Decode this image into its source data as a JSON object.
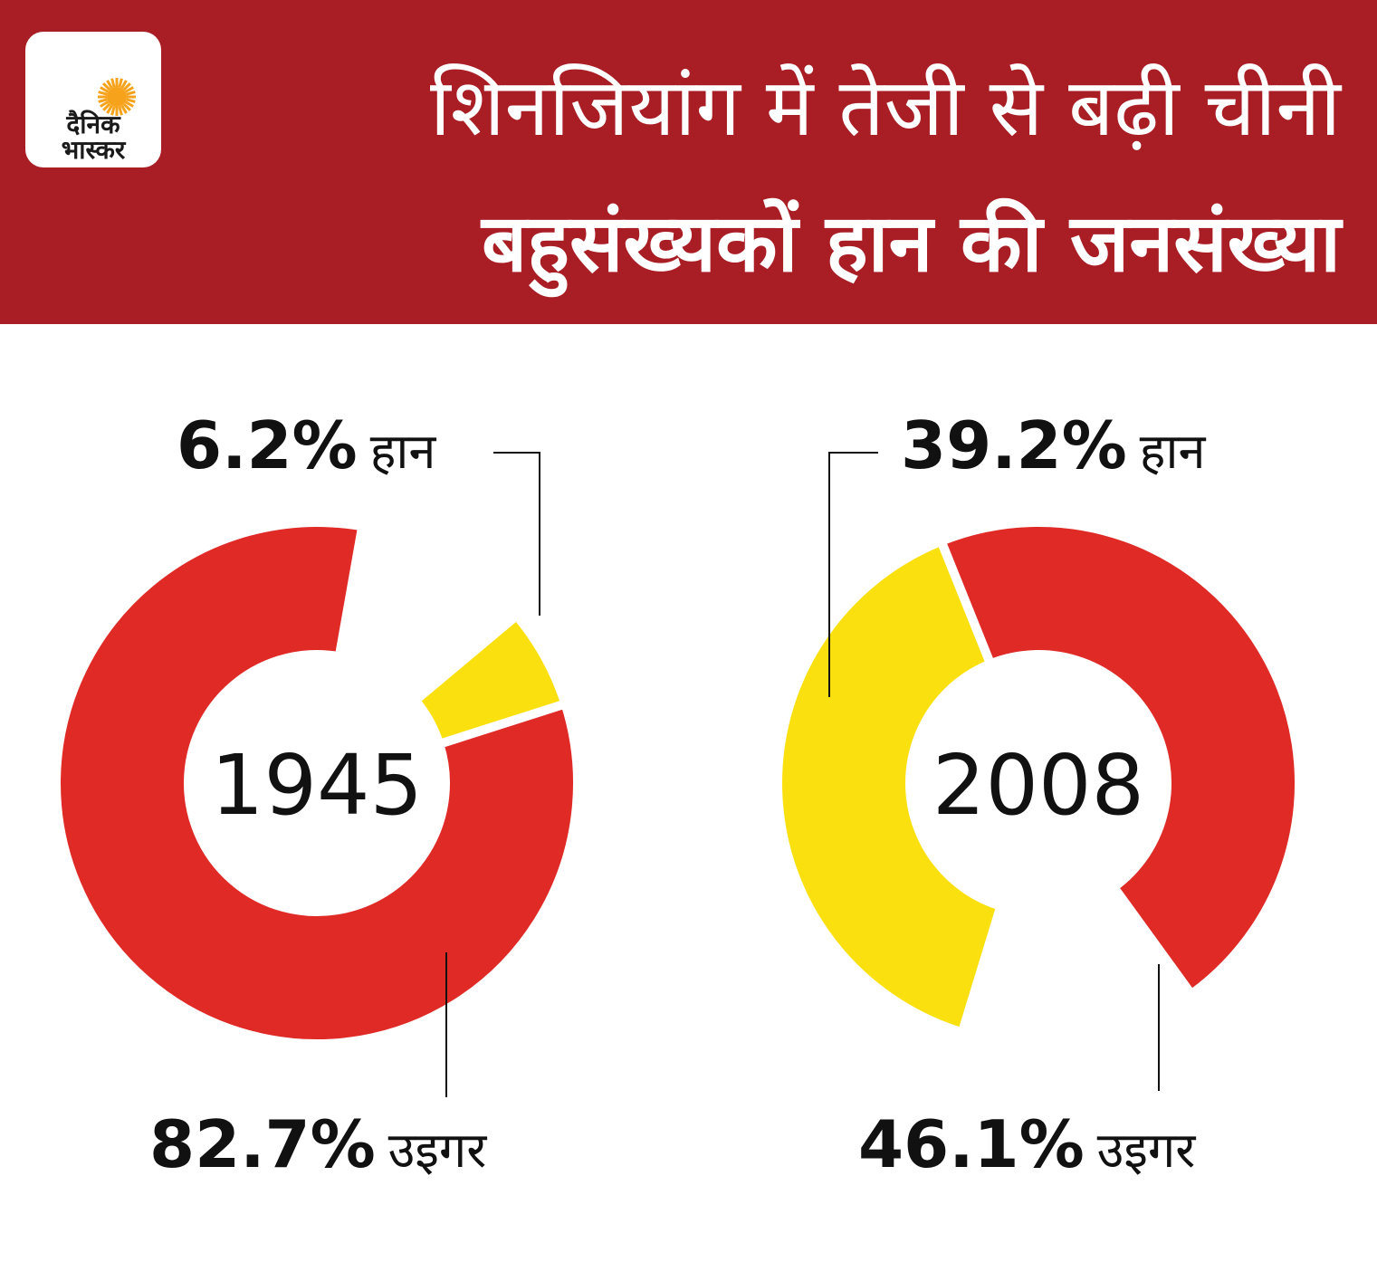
{
  "header": {
    "title_line1": "शिनजियांग में तेजी से बढ़ी चीनी",
    "title_line2": "बहुसंख्यकों हान की जनसंख्या",
    "background_color": "#a91d24"
  },
  "logo": {
    "line1": "दैनिक",
    "line2": "भास्कर",
    "sun_color": "#f7a21b"
  },
  "chart_data": [
    {
      "type": "pie",
      "center_label": "1945",
      "slices": [
        {
          "label": "हान",
          "percent": "6.2%",
          "value": 6.2,
          "color": "#fbe010"
        },
        {
          "label": "उइगर",
          "percent": "82.7%",
          "value": 82.7,
          "color": "#e02a26"
        }
      ]
    },
    {
      "type": "pie",
      "center_label": "2008",
      "slices": [
        {
          "label": "हान",
          "percent": "39.2%",
          "value": 39.2,
          "color": "#fbe010"
        },
        {
          "label": "उइगर",
          "percent": "46.1%",
          "value": 46.1,
          "color": "#e02a26"
        }
      ]
    }
  ]
}
